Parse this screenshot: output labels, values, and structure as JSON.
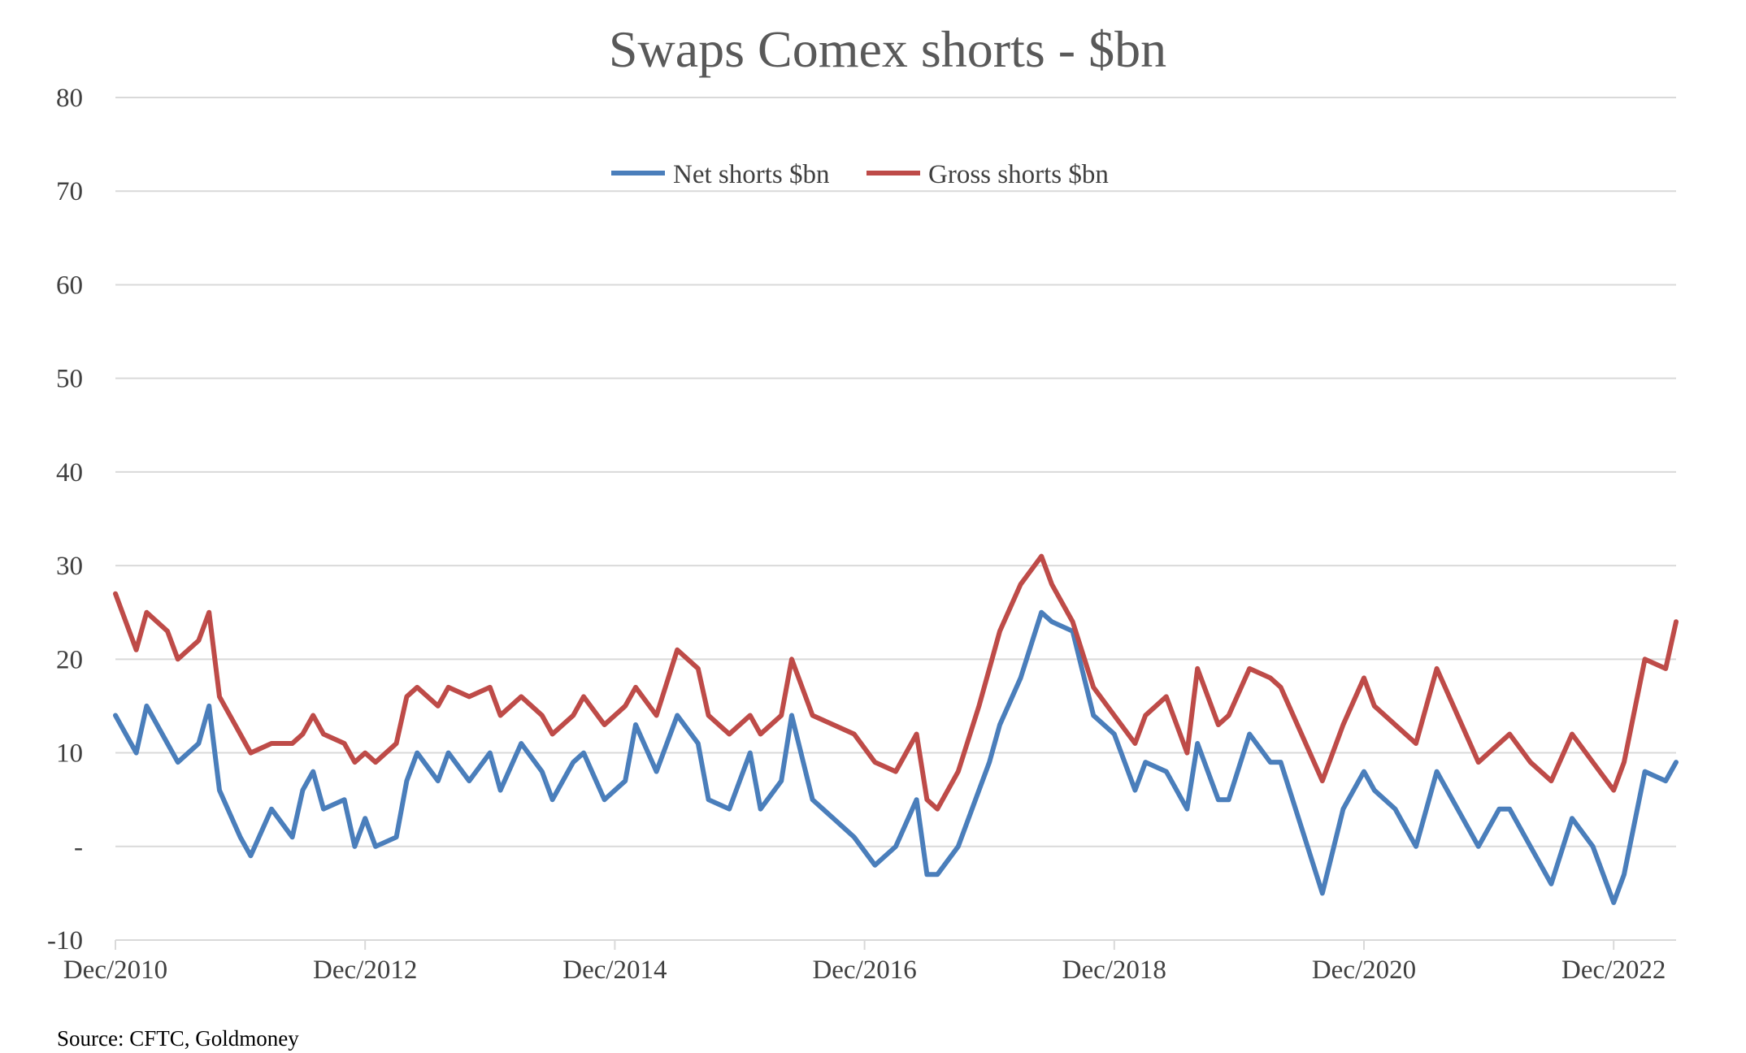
{
  "colors": {
    "net": "#4a7ebb",
    "gross": "#be4b48"
  },
  "source_text": "Source: CFTC, Goldmoney",
  "chart_data": {
    "type": "line",
    "title": "Swaps Comex shorts - $bn",
    "xlabel": "",
    "ylabel": "",
    "ylim": [
      -10,
      80
    ],
    "y_ticks": [
      -10,
      0,
      10,
      20,
      30,
      40,
      50,
      60,
      70,
      80
    ],
    "y_tick_labels": [
      "-10",
      "-",
      "10",
      "20",
      "30",
      "40",
      "50",
      "60",
      "70",
      "80"
    ],
    "x_range": [
      "2010-12",
      "2023-06"
    ],
    "x_tick_labels": [
      "Dec/2010",
      "Dec/2012",
      "Dec/2014",
      "Dec/2016",
      "Dec/2018",
      "Dec/2020",
      "Dec/2022"
    ],
    "grid": "horizontal",
    "legend_position": "top-center",
    "series": [
      {
        "name": "Net shorts $bn",
        "color": "#4a7ebb",
        "points": [
          [
            "2010-12",
            14
          ],
          [
            "2011-02",
            10
          ],
          [
            "2011-03",
            15
          ],
          [
            "2011-05",
            11
          ],
          [
            "2011-06",
            9
          ],
          [
            "2011-08",
            11
          ],
          [
            "2011-09",
            15
          ],
          [
            "2011-10",
            6
          ],
          [
            "2011-12",
            1
          ],
          [
            "2012-01",
            -1
          ],
          [
            "2012-03",
            4
          ],
          [
            "2012-05",
            1
          ],
          [
            "2012-06",
            6
          ],
          [
            "2012-07",
            8
          ],
          [
            "2012-08",
            4
          ],
          [
            "2012-10",
            5
          ],
          [
            "2012-11",
            0
          ],
          [
            "2012-12",
            3
          ],
          [
            "2013-01",
            0
          ],
          [
            "2013-03",
            1
          ],
          [
            "2013-04",
            7
          ],
          [
            "2013-05",
            10
          ],
          [
            "2013-07",
            7
          ],
          [
            "2013-08",
            10
          ],
          [
            "2013-10",
            7
          ],
          [
            "2013-12",
            10
          ],
          [
            "2014-01",
            6
          ],
          [
            "2014-03",
            11
          ],
          [
            "2014-05",
            8
          ],
          [
            "2014-06",
            5
          ],
          [
            "2014-08",
            9
          ],
          [
            "2014-09",
            10
          ],
          [
            "2014-11",
            5
          ],
          [
            "2015-01",
            7
          ],
          [
            "2015-02",
            13
          ],
          [
            "2015-04",
            8
          ],
          [
            "2015-06",
            14
          ],
          [
            "2015-08",
            11
          ],
          [
            "2015-09",
            5
          ],
          [
            "2015-11",
            4
          ],
          [
            "2016-01",
            10
          ],
          [
            "2016-02",
            4
          ],
          [
            "2016-04",
            7
          ],
          [
            "2016-05",
            14
          ],
          [
            "2016-07",
            5
          ],
          [
            "2016-09",
            3
          ],
          [
            "2016-11",
            1
          ],
          [
            "2017-01",
            -2
          ],
          [
            "2017-03",
            0
          ],
          [
            "2017-05",
            5
          ],
          [
            "2017-06",
            -3
          ],
          [
            "2017-07",
            -3
          ],
          [
            "2017-09",
            0
          ],
          [
            "2017-11",
            6
          ],
          [
            "2017-12",
            9
          ],
          [
            "2018-01",
            13
          ],
          [
            "2018-03",
            18
          ],
          [
            "2018-05",
            25
          ],
          [
            "2018-06",
            24
          ],
          [
            "2018-08",
            23
          ],
          [
            "2018-10",
            14
          ],
          [
            "2018-12",
            12
          ],
          [
            "2019-02",
            6
          ],
          [
            "2019-03",
            9
          ],
          [
            "2019-05",
            8
          ],
          [
            "2019-07",
            4
          ],
          [
            "2019-08",
            11
          ],
          [
            "2019-10",
            5
          ],
          [
            "2019-11",
            5
          ],
          [
            "2020-01",
            12
          ],
          [
            "2020-03",
            9
          ],
          [
            "2020-04",
            9
          ],
          [
            "2020-06",
            2
          ],
          [
            "2020-08",
            -5
          ],
          [
            "2020-10",
            4
          ],
          [
            "2020-12",
            8
          ],
          [
            "2021-01",
            6
          ],
          [
            "2021-03",
            4
          ],
          [
            "2021-05",
            0
          ],
          [
            "2021-07",
            8
          ],
          [
            "2021-09",
            4
          ],
          [
            "2021-11",
            0
          ],
          [
            "2022-01",
            4
          ],
          [
            "2022-02",
            4
          ],
          [
            "2022-04",
            0
          ],
          [
            "2022-06",
            -4
          ],
          [
            "2022-08",
            3
          ],
          [
            "2022-10",
            0
          ],
          [
            "2022-12",
            -6
          ],
          [
            "2023-01",
            -3
          ],
          [
            "2023-03",
            8
          ],
          [
            "2023-05",
            7
          ],
          [
            "2023-06",
            9
          ]
        ]
      },
      {
        "name": "Gross shorts $bn",
        "color": "#be4b48",
        "points": [
          [
            "2010-12",
            27
          ],
          [
            "2011-02",
            21
          ],
          [
            "2011-03",
            25
          ],
          [
            "2011-05",
            23
          ],
          [
            "2011-06",
            20
          ],
          [
            "2011-08",
            22
          ],
          [
            "2011-09",
            25
          ],
          [
            "2011-10",
            16
          ],
          [
            "2011-12",
            12
          ],
          [
            "2012-01",
            10
          ],
          [
            "2012-03",
            11
          ],
          [
            "2012-05",
            11
          ],
          [
            "2012-06",
            12
          ],
          [
            "2012-07",
            14
          ],
          [
            "2012-08",
            12
          ],
          [
            "2012-10",
            11
          ],
          [
            "2012-11",
            9
          ],
          [
            "2012-12",
            10
          ],
          [
            "2013-01",
            9
          ],
          [
            "2013-03",
            11
          ],
          [
            "2013-04",
            16
          ],
          [
            "2013-05",
            17
          ],
          [
            "2013-07",
            15
          ],
          [
            "2013-08",
            17
          ],
          [
            "2013-10",
            16
          ],
          [
            "2013-12",
            17
          ],
          [
            "2014-01",
            14
          ],
          [
            "2014-03",
            16
          ],
          [
            "2014-05",
            14
          ],
          [
            "2014-06",
            12
          ],
          [
            "2014-08",
            14
          ],
          [
            "2014-09",
            16
          ],
          [
            "2014-11",
            13
          ],
          [
            "2015-01",
            15
          ],
          [
            "2015-02",
            17
          ],
          [
            "2015-04",
            14
          ],
          [
            "2015-06",
            21
          ],
          [
            "2015-08",
            19
          ],
          [
            "2015-09",
            14
          ],
          [
            "2015-11",
            12
          ],
          [
            "2016-01",
            14
          ],
          [
            "2016-02",
            12
          ],
          [
            "2016-04",
            14
          ],
          [
            "2016-05",
            20
          ],
          [
            "2016-07",
            14
          ],
          [
            "2016-09",
            13
          ],
          [
            "2016-11",
            12
          ],
          [
            "2017-01",
            9
          ],
          [
            "2017-03",
            8
          ],
          [
            "2017-05",
            12
          ],
          [
            "2017-06",
            5
          ],
          [
            "2017-07",
            4
          ],
          [
            "2017-09",
            8
          ],
          [
            "2017-11",
            15
          ],
          [
            "2017-12",
            19
          ],
          [
            "2018-01",
            23
          ],
          [
            "2018-03",
            28
          ],
          [
            "2018-05",
            31
          ],
          [
            "2018-06",
            28
          ],
          [
            "2018-08",
            24
          ],
          [
            "2018-10",
            17
          ],
          [
            "2018-12",
            14
          ],
          [
            "2019-02",
            11
          ],
          [
            "2019-03",
            14
          ],
          [
            "2019-05",
            16
          ],
          [
            "2019-07",
            10
          ],
          [
            "2019-08",
            19
          ],
          [
            "2019-10",
            13
          ],
          [
            "2019-11",
            14
          ],
          [
            "2020-01",
            19
          ],
          [
            "2020-03",
            18
          ],
          [
            "2020-04",
            17
          ],
          [
            "2020-06",
            12
          ],
          [
            "2020-08",
            7
          ],
          [
            "2020-10",
            13
          ],
          [
            "2020-12",
            18
          ],
          [
            "2021-01",
            15
          ],
          [
            "2021-03",
            13
          ],
          [
            "2021-05",
            11
          ],
          [
            "2021-07",
            19
          ],
          [
            "2021-09",
            14
          ],
          [
            "2021-11",
            9
          ],
          [
            "2022-01",
            11
          ],
          [
            "2022-02",
            12
          ],
          [
            "2022-04",
            9
          ],
          [
            "2022-06",
            7
          ],
          [
            "2022-08",
            12
          ],
          [
            "2022-10",
            9
          ],
          [
            "2022-12",
            6
          ],
          [
            "2023-01",
            9
          ],
          [
            "2023-03",
            20
          ],
          [
            "2023-05",
            19
          ],
          [
            "2023-06",
            24
          ]
        ]
      }
    ]
  }
}
